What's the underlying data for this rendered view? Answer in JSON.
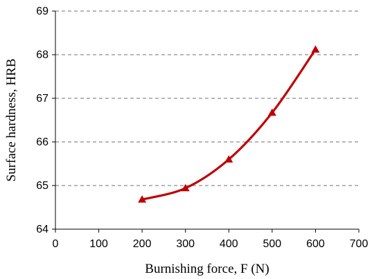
{
  "chart_data": {
    "type": "line",
    "title": "",
    "xlabel": "Burnishing force, F (N)",
    "ylabel": "Surface hardness, HRB",
    "xlim": [
      0,
      700
    ],
    "ylim": [
      64,
      69
    ],
    "x_ticks": [
      0,
      100,
      200,
      300,
      400,
      500,
      600,
      700
    ],
    "y_ticks": [
      64,
      65,
      66,
      67,
      68,
      69
    ],
    "grid": "horizontal dashed",
    "legend": "none",
    "marker": "triangle",
    "series": [
      {
        "color": "#c00000",
        "x": [
          200,
          300,
          400,
          500,
          600
        ],
        "y": [
          64.68,
          64.94,
          65.6,
          66.67,
          68.12
        ]
      }
    ]
  }
}
